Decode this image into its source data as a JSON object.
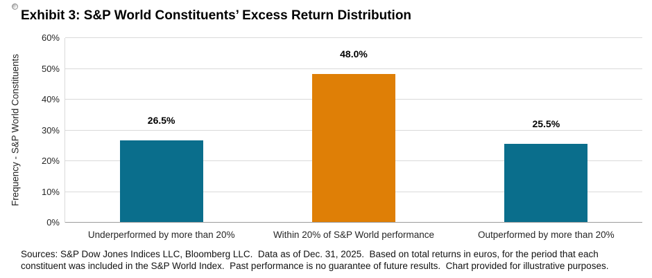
{
  "title": "Exhibit 3: S&P World Constituents’ Excess Return Distribution",
  "decoration": {
    "cursor_icon": "rotate-cursor-icon"
  },
  "colors": {
    "teal": "#0a6e8c",
    "orange": "#df7f06",
    "gridline": "#d9d9d9",
    "axis_line": "#9a9a9a",
    "text": "#000000"
  },
  "chart_data": {
    "type": "bar",
    "title": "Exhibit 3: S&P World Constituents’ Excess Return Distribution",
    "categories": [
      "Underperformed by more than 20%",
      "Within 20% of S&P World performance",
      "Outperformed by more than 20%"
    ],
    "values": [
      26.5,
      48.0,
      25.5
    ],
    "value_labels": [
      "26.5%",
      "48.0%",
      "25.5%"
    ],
    "bar_colors": [
      "#0a6e8c",
      "#df7f06",
      "#0a6e8c"
    ],
    "xlabel": "",
    "ylabel": "Frequency - S&P World Constituents",
    "ylim": [
      0,
      60
    ],
    "ytick_step": 10,
    "ytick_labels": [
      "0%",
      "10%",
      "20%",
      "30%",
      "40%",
      "50%",
      "60%"
    ],
    "grid": true,
    "legend": "none"
  },
  "footnote": {
    "line1": "Sources: S&P Dow Jones Indices LLC, Bloomberg LLC.  Data as of Dec. 31, 2025.  Based on total returns in euros, for the period that each",
    "line2": "constituent was included in the S&P World Index.  Past performance is no guarantee of future results.  Chart provided for illustrative purposes."
  }
}
